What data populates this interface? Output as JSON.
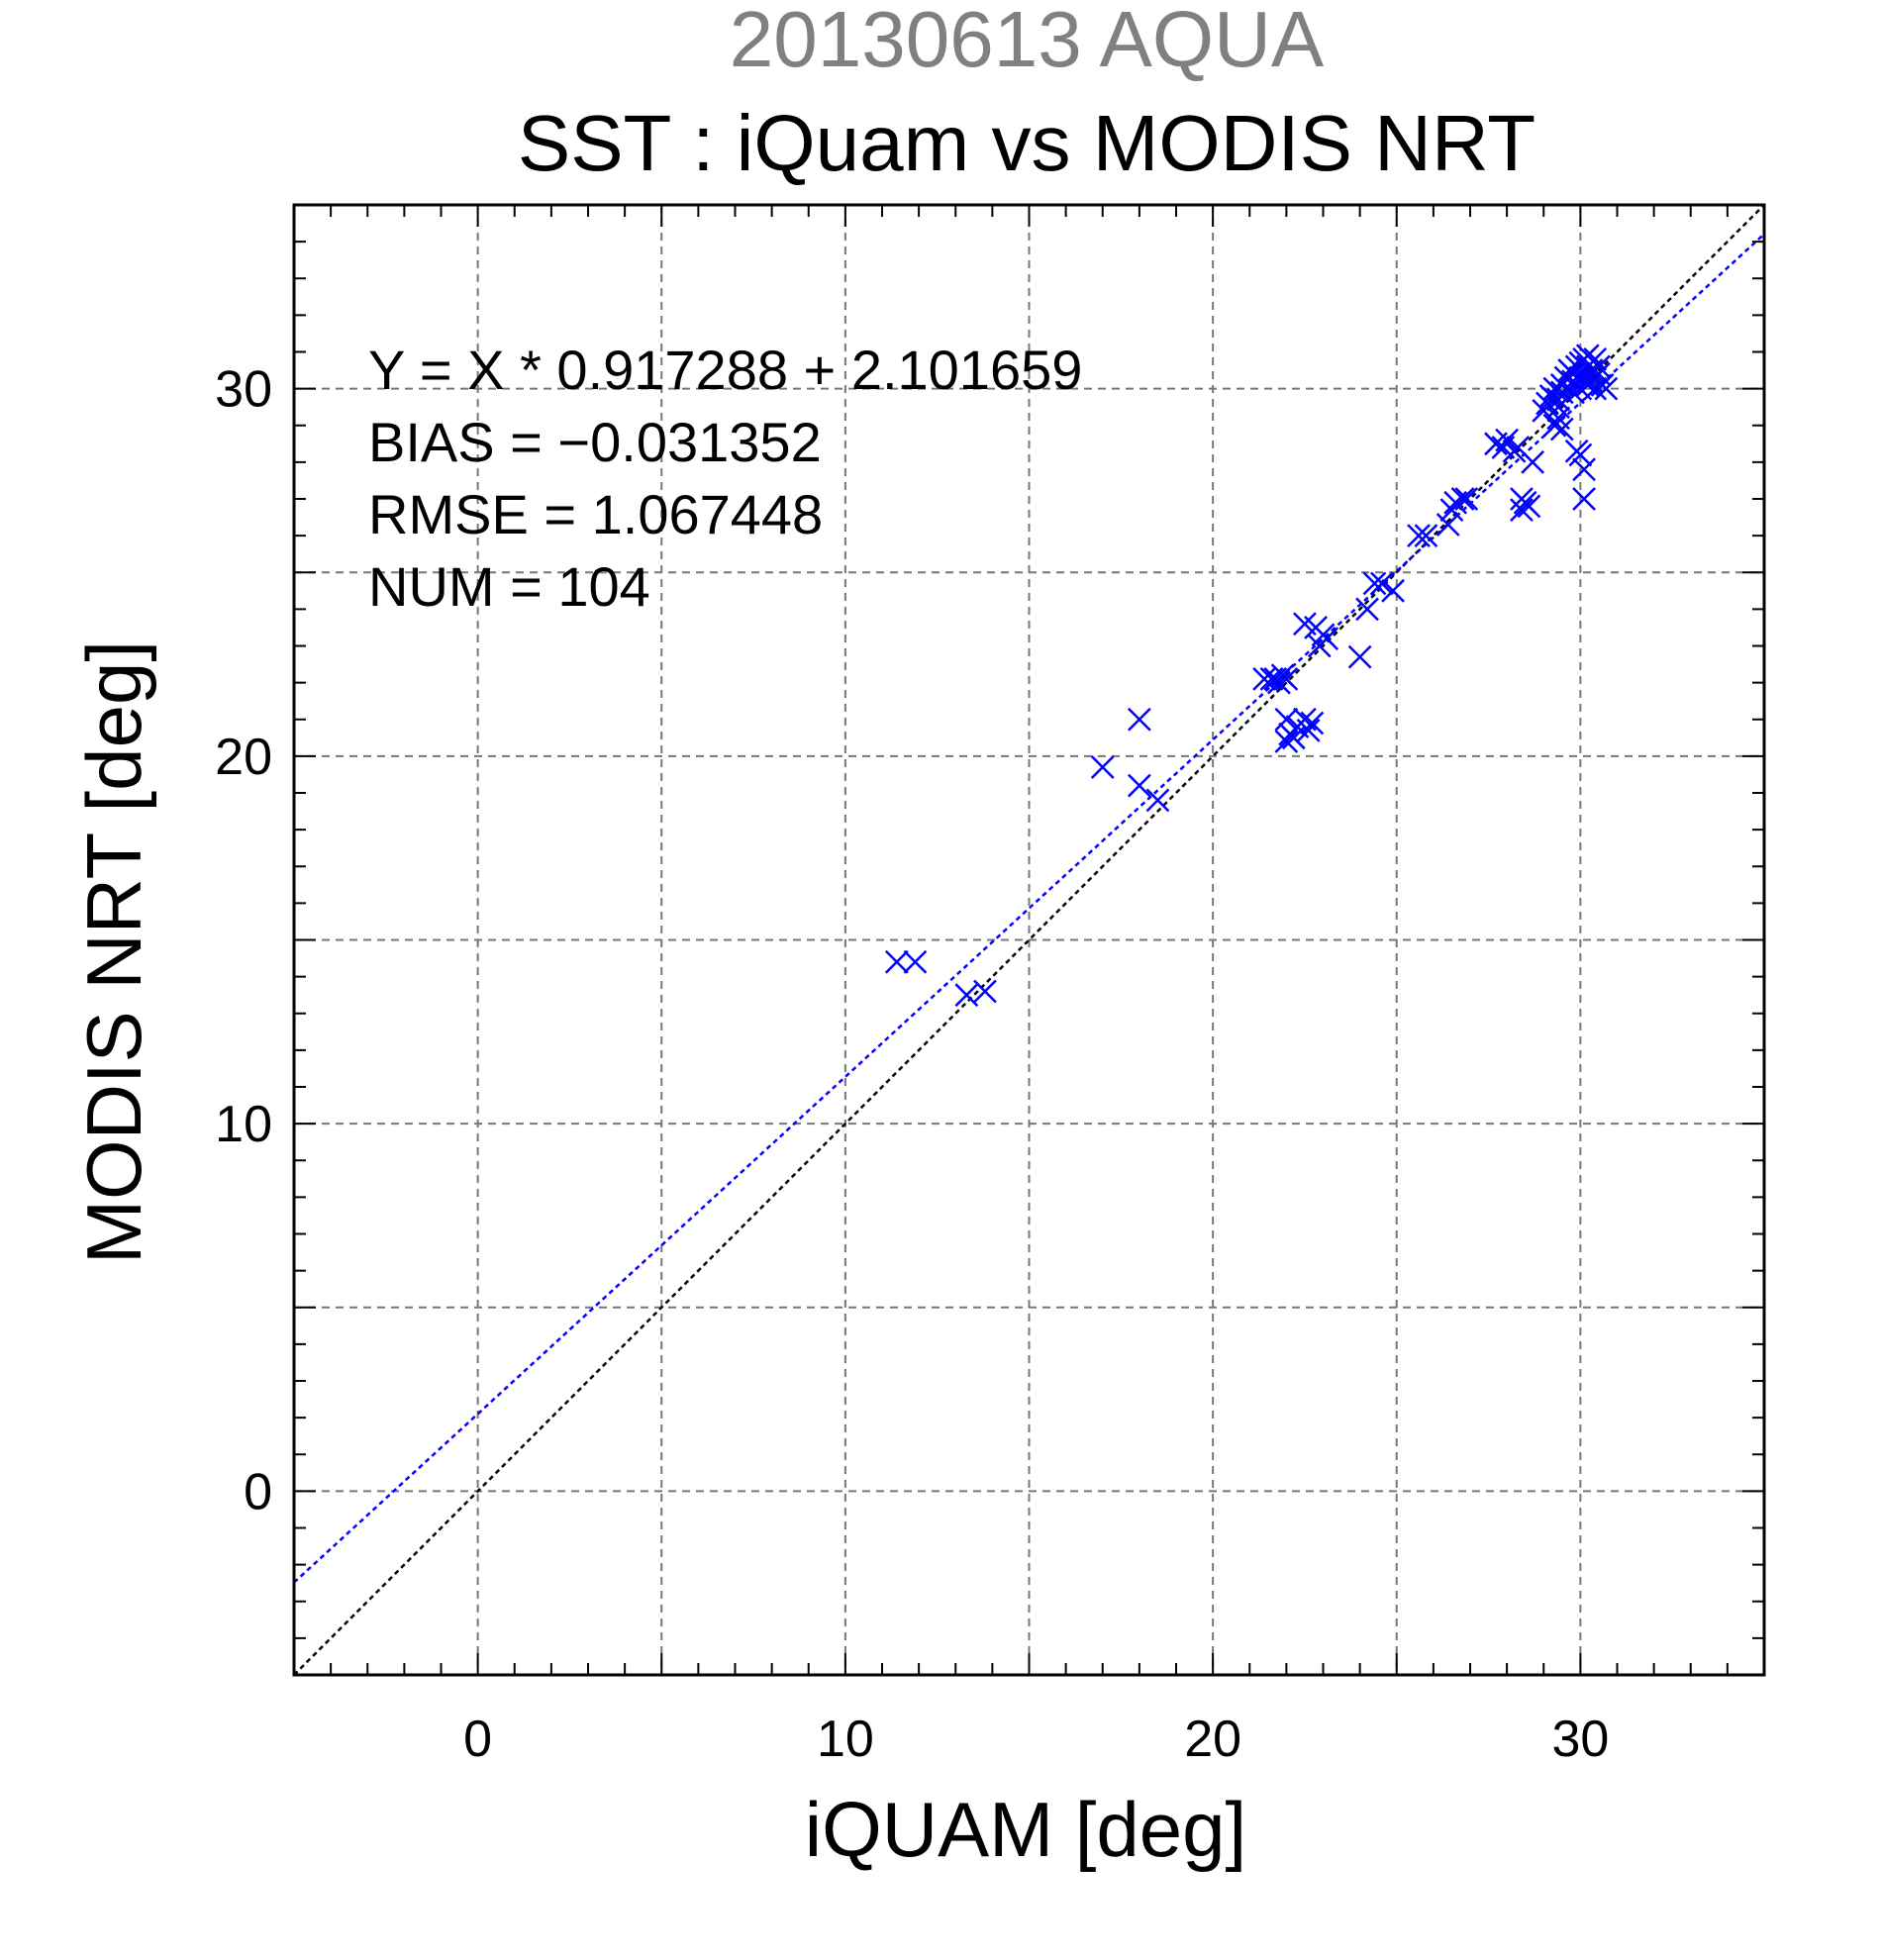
{
  "chart_data": {
    "type": "scatter",
    "title": "20130613 AQUA",
    "subtitle": "SST : iQuam vs MODIS NRT",
    "xlabel": "iQUAM [deg]",
    "ylabel": "MODIS NRT [deg]",
    "xlim": [
      -5,
      35
    ],
    "ylim": [
      -5,
      35
    ],
    "xticks": [
      0,
      10,
      20,
      30
    ],
    "yticks": [
      0,
      10,
      20,
      30
    ],
    "grid": true,
    "annotations": [
      "Y = X * 0.917288 + 2.101659",
      "BIAS = −0.031352",
      "RMSE = 1.067448",
      "NUM = 104"
    ],
    "lines": [
      {
        "kind": "identity",
        "slope": 1,
        "intercept": 0,
        "color": "#000000",
        "dashed": true
      },
      {
        "kind": "regression",
        "slope": 0.917288,
        "intercept": 2.101659,
        "color": "#0000ff",
        "dashed": true
      }
    ],
    "marker": "x",
    "marker_color": "#0000ff",
    "series": [
      {
        "x": [
          11.4,
          11.9,
          13.3,
          13.8,
          17.0,
          18.0,
          18.0,
          18.5,
          21.4,
          21.6,
          21.8,
          21.9,
          22.0,
          21.7,
          22.0,
          22.1,
          22.0,
          22.3,
          22.5,
          22.6,
          22.7,
          22.2,
          22.5,
          22.8,
          22.9,
          23.0,
          23.1,
          24.0,
          24.2,
          24.4,
          24.6,
          24.9,
          25.6,
          25.8,
          26.4,
          26.5,
          26.6,
          26.8,
          26.9,
          27.7,
          27.9,
          28.0,
          28.2,
          28.3,
          28.4,
          28.5,
          28.4,
          28.6,
          28.7,
          29.0,
          29.1,
          29.2,
          29.3,
          29.4,
          29.4,
          29.5,
          29.5,
          29.6,
          29.7,
          29.8,
          29.8,
          29.9,
          30.0,
          29.3,
          29.4,
          29.5,
          30.0,
          30.1,
          30.2,
          30.2,
          30.3,
          30.4,
          30.5,
          30.5,
          30.6,
          30.7,
          30.1,
          30.3,
          30.4,
          30.0,
          30.1,
          29.9,
          30.1,
          29.8,
          30.2,
          29.9,
          30.0,
          30.2
        ],
        "y": [
          14.4,
          14.4,
          13.5,
          13.6,
          19.7,
          21.0,
          19.2,
          18.8,
          22.1,
          22.1,
          22.0,
          22.2,
          22.1,
          22.1,
          20.4,
          20.6,
          21.0,
          20.8,
          21.0,
          20.7,
          20.9,
          20.5,
          23.6,
          23.5,
          23.0,
          23.3,
          23.2,
          22.7,
          24.0,
          24.7,
          24.7,
          24.5,
          26.0,
          26.0,
          26.3,
          26.7,
          26.9,
          27.0,
          27.0,
          28.5,
          28.4,
          28.6,
          28.3,
          28.4,
          26.7,
          26.9,
          27.0,
          26.8,
          28.0,
          29.4,
          29.6,
          29.8,
          30.0,
          29.7,
          29.5,
          30.1,
          29.9,
          30.3,
          30.5,
          30.4,
          30.2,
          30.6,
          30.0,
          29.0,
          29.2,
          28.9,
          30.7,
          30.8,
          30.9,
          30.6,
          30.5,
          30.8,
          30.4,
          30.6,
          30.1,
          30.0,
          30.3,
          30.2,
          30.0,
          28.2,
          27.8,
          28.3,
          27.0,
          29.9,
          30.1,
          30.1,
          30.3,
          30.4
        ]
      }
    ]
  }
}
